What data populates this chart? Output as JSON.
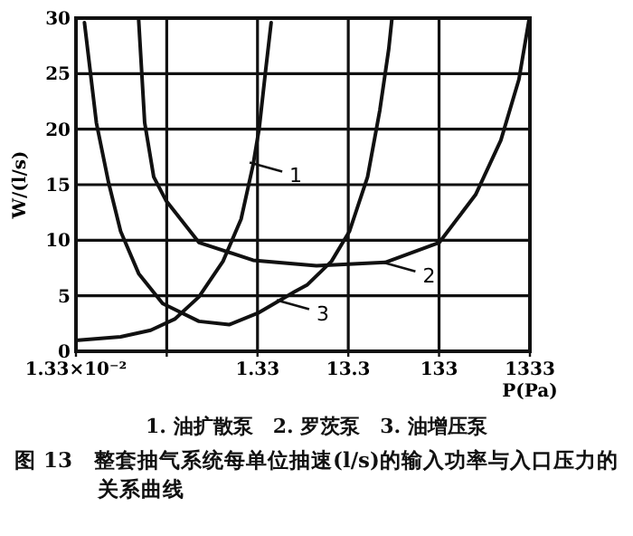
{
  "chart_data": {
    "type": "line",
    "title": "图 13　整套抽气系统每单位抽速(l/s)的输入功率与入口压力的关系曲线",
    "xlabel": "P(Pa)",
    "ylabel": "W/(l/s)",
    "log": "x",
    "grid": true,
    "marker": "none",
    "line_style": "solid",
    "xlim": [
      0.0133,
      1333
    ],
    "xticks": [
      {
        "value": 0.0133,
        "label": "1.33×10⁻²"
      },
      {
        "value": 0.133,
        "label": null
      },
      1.33,
      13.3,
      133,
      1333
    ],
    "ylim": [
      0,
      30
    ],
    "yticks": [
      0,
      5,
      10,
      15,
      20,
      25,
      30
    ],
    "series": [
      {
        "color": "#111111",
        "x": [
          0.0133,
          0.0141,
          0.0413,
          0.0885,
          0.163,
          0.301,
          0.554,
          0.877,
          1.19,
          1.39,
          1.62,
          1.88
        ],
        "values": [
          1.0,
          1.0,
          1.3,
          1.9,
          2.9,
          4.9,
          8.1,
          11.9,
          16.8,
          20.1,
          25.0,
          29.6
        ]
      },
      {
        "color": "#111111",
        "x": [
          0.0653,
          0.076,
          0.0956,
          0.13,
          0.301,
          1.19,
          5.93,
          33.9,
          134,
          336,
          638,
          1010,
          1300
        ],
        "values": [
          29.8,
          20.6,
          15.7,
          13.6,
          9.8,
          8.2,
          7.7,
          8.0,
          9.8,
          14.1,
          19.0,
          24.5,
          29.8
        ]
      },
      {
        "color": "#111111",
        "x": [
          0.0165,
          0.0223,
          0.0304,
          0.0413,
          0.0653,
          0.12,
          0.301,
          0.647,
          1.39,
          3.47,
          4.72,
          8.69,
          13.7,
          21.7,
          29.6,
          37.1,
          40.2
        ],
        "values": [
          29.6,
          20.6,
          15.2,
          10.8,
          7.0,
          4.3,
          2.7,
          2.4,
          3.5,
          5.4,
          6.0,
          8.1,
          10.8,
          15.7,
          21.7,
          27.2,
          29.9
        ]
      }
    ],
    "annotations": [
      "1. 油扩散泵　2. 罗茨泵　3. 油增压泵",
      {
        "text": "1",
        "x": 1.09,
        "y": 17
      },
      {
        "text": "2",
        "x": 32,
        "y": 8.0
      },
      {
        "text": "3",
        "x": 2.16,
        "y": 4.6
      }
    ]
  }
}
